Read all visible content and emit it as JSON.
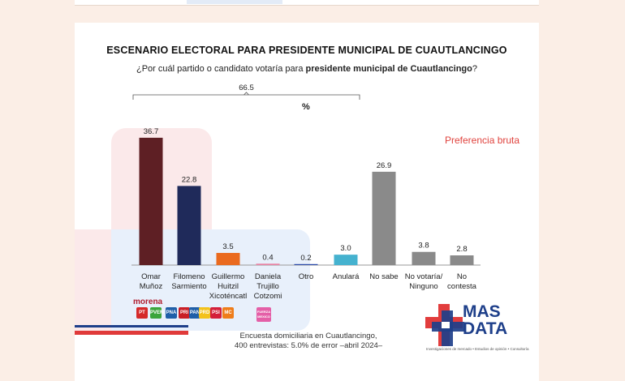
{
  "chart_data": {
    "type": "bar",
    "title": "ESCENARIO ELECTORAL PARA PRESIDENTE MUNICIPAL DE CUAUTLANCINGO",
    "subtitle_prefix": "¿Por cuál partido o candidato votaría para ",
    "subtitle_bold": "presidente municipal de Cuautlancingo",
    "subtitle_suffix": "?",
    "unit_label": "%",
    "annotation_label": "Preferencia bruta",
    "bracket_total": "66.5",
    "ylim": [
      0,
      40
    ],
    "categories": [
      [
        "Omar",
        "Muñoz"
      ],
      [
        "Filomeno",
        "Sarmiento"
      ],
      [
        "Guillermo",
        "Huitzil",
        "Xicoténcatl"
      ],
      [
        "Daniela",
        "Trujillo",
        "Cotzomi"
      ],
      [
        "Otro"
      ],
      [
        "Anulará"
      ],
      [
        "No sabe"
      ],
      [
        "No votaría/",
        "Ninguno"
      ],
      [
        "No",
        "contesta"
      ]
    ],
    "values": [
      36.7,
      22.8,
      3.5,
      0.4,
      0.2,
      3.0,
      26.9,
      3.8,
      2.8
    ],
    "value_labels": [
      "36.7",
      "22.8",
      "3.5",
      "0.4",
      "0.2",
      "3.0",
      "26.9",
      "3.8",
      "2.8"
    ],
    "colors": [
      "#5e1f24",
      "#1f2a5a",
      "#ea6a1f",
      "#e884a4",
      "#2a4aa8",
      "#45b2cf",
      "#8a8a8a",
      "#8a8a8a",
      "#8a8a8a"
    ]
  },
  "party_logos": {
    "morena_label": "morena",
    "logos": [
      {
        "text": "PT",
        "color": "#d52a2a"
      },
      {
        "text": "PVEM",
        "color": "#3ba53b"
      },
      {
        "text": "PNA",
        "color": "#1f5fa8"
      },
      {
        "text": "PRI",
        "color": "#c91f27"
      },
      {
        "text": "PAN",
        "color": "#1f5fa8"
      },
      {
        "text": "PRD",
        "color": "#f3c21b"
      },
      {
        "text": "PSI",
        "color": "#d41f3a"
      },
      {
        "text": "MC",
        "color": "#ef7d1a"
      },
      {
        "text": "FUERZA MEXICO",
        "color": "#e45fa7"
      }
    ]
  },
  "footer": {
    "line1": "Encuesta domiciliaria en Cuautlancingo,",
    "line2": "400 entrevistas: 5.0% de error –abril 2024–"
  },
  "brand": {
    "line1": "MAS",
    "line2": "DATA",
    "tagline": "Investigaciones de mercado • Estudios de opinión • Consultoría",
    "colors": {
      "red": "#e23d3d",
      "blue": "#1e3f8a"
    }
  }
}
